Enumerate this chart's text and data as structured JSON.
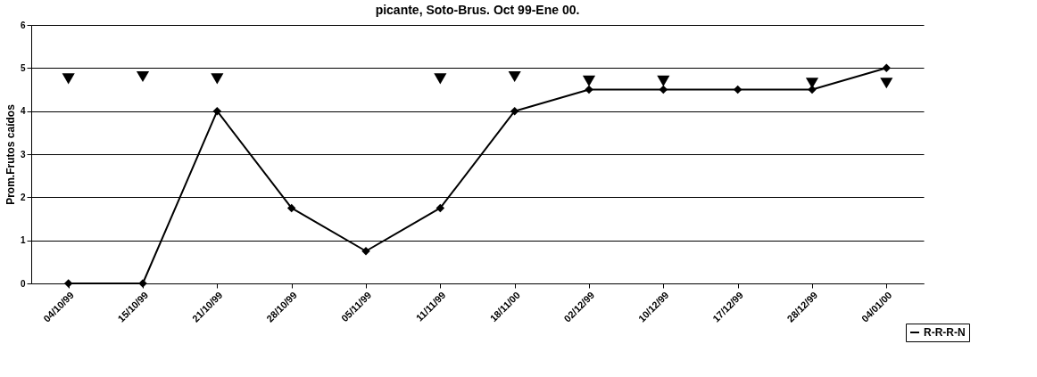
{
  "chart_data": {
    "type": "line",
    "title": "picante, Soto-Brus. Oct 99-Ene 00.",
    "ylabel": "Prom.Frutos caídos",
    "categories": [
      "04/10/99",
      "15/10/99",
      "21/10/99",
      "28/10/99",
      "05/11/99",
      "11/11/99",
      "18/11/00",
      "02/12/99",
      "10/12/99",
      "17/12/99",
      "28/12/99",
      "04/01/00"
    ],
    "series": [
      {
        "name": "R-R-R-N",
        "color": "#000000",
        "marker": "diamond",
        "values": [
          0,
          0,
          4,
          1.75,
          0.75,
          1.75,
          4,
          4.5,
          4.5,
          4.5,
          4.5,
          5
        ]
      },
      {
        "type": "scatter",
        "color": "#000000",
        "marker": "triangle",
        "values": [
          4.75,
          4.8,
          4.75,
          null,
          null,
          4.75,
          4.8,
          4.7,
          4.7,
          null,
          4.65,
          4.65
        ]
      }
    ],
    "ylim": [
      0,
      6
    ],
    "yticks": [
      0,
      1,
      2,
      3,
      4,
      5,
      6
    ],
    "grid": "y",
    "legend": "bottom right"
  }
}
